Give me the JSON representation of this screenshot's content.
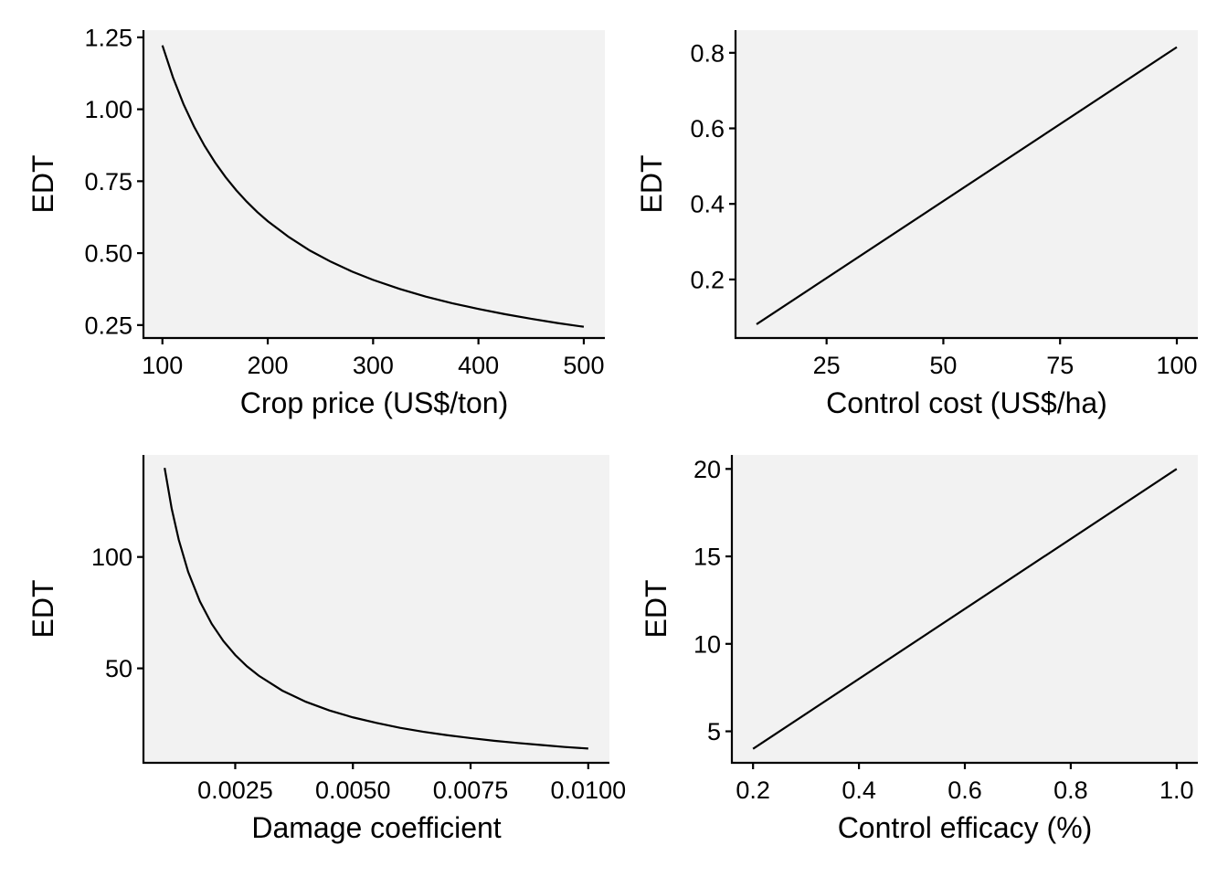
{
  "chart_data": [
    {
      "type": "line",
      "xlabel": "Crop price (US$/ton)",
      "ylabel": "EDT",
      "xlim": [
        82,
        520
      ],
      "ylim": [
        0.205,
        1.275
      ],
      "xticks": [
        100,
        200,
        300,
        400,
        500
      ],
      "xtick_labels": [
        "100",
        "200",
        "300",
        "400",
        "500"
      ],
      "yticks": [
        0.25,
        0.5,
        0.75,
        1.0,
        1.25
      ],
      "ytick_labels": [
        "0.25",
        "0.50",
        "0.75",
        "1.00",
        "1.25"
      ],
      "grid": false,
      "series": [
        {
          "x": [
            100,
            110,
            120,
            130,
            140,
            150,
            160,
            170,
            180,
            190,
            200,
            220,
            240,
            260,
            280,
            300,
            325,
            350,
            375,
            400,
            425,
            450,
            475,
            500
          ],
          "values": [
            1.222,
            1.111,
            1.018,
            0.94,
            0.873,
            0.815,
            0.764,
            0.719,
            0.679,
            0.643,
            0.611,
            0.556,
            0.509,
            0.47,
            0.436,
            0.407,
            0.376,
            0.349,
            0.326,
            0.306,
            0.288,
            0.272,
            0.257,
            0.244
          ]
        }
      ]
    },
    {
      "type": "line",
      "xlabel": "Control cost (US$/ha)",
      "ylabel": "EDT",
      "xlim": [
        5.5,
        104.5
      ],
      "ylim": [
        0.045,
        0.86
      ],
      "xticks": [
        25,
        50,
        75,
        100
      ],
      "xtick_labels": [
        "25",
        "50",
        "75",
        "100"
      ],
      "yticks": [
        0.2,
        0.4,
        0.6,
        0.8
      ],
      "ytick_labels": [
        "0.2",
        "0.4",
        "0.6",
        "0.8"
      ],
      "grid": false,
      "series": [
        {
          "x": [
            10,
            100
          ],
          "values": [
            0.0815,
            0.815
          ]
        }
      ]
    },
    {
      "type": "line",
      "xlabel": "Damage coefficient",
      "ylabel": "EDT",
      "xlim": [
        0.00055,
        0.01045
      ],
      "ylim": [
        7.6,
        145.8
      ],
      "xticks": [
        0.0025,
        0.005,
        0.0075,
        0.01
      ],
      "xtick_labels": [
        "0.0025",
        "0.0050",
        "0.0075",
        "0.0100"
      ],
      "yticks": [
        50,
        100
      ],
      "ytick_labels": [
        "50",
        "100"
      ],
      "grid": false,
      "series": [
        {
          "x": [
            0.001,
            0.00115,
            0.0013,
            0.0015,
            0.00175,
            0.002,
            0.00225,
            0.0025,
            0.00275,
            0.003,
            0.0035,
            0.004,
            0.0045,
            0.005,
            0.0055,
            0.006,
            0.0065,
            0.007,
            0.0075,
            0.008,
            0.0085,
            0.009,
            0.0095,
            0.01
          ],
          "values": [
            140,
            121.7,
            107.7,
            93.3,
            80.0,
            70.0,
            62.2,
            56.0,
            50.9,
            46.7,
            40.0,
            35.0,
            31.1,
            28.0,
            25.5,
            23.3,
            21.5,
            20.0,
            18.7,
            17.5,
            16.5,
            15.6,
            14.7,
            14.0
          ]
        }
      ]
    },
    {
      "type": "line",
      "xlabel": "Control efficacy (%)",
      "ylabel": "EDT",
      "xlim": [
        0.16,
        1.04
      ],
      "ylim": [
        3.2,
        20.8
      ],
      "xticks": [
        0.2,
        0.4,
        0.6,
        0.8,
        1.0
      ],
      "xtick_labels": [
        "0.2",
        "0.4",
        "0.6",
        "0.8",
        "1.0"
      ],
      "yticks": [
        5,
        10,
        15,
        20
      ],
      "ytick_labels": [
        "5",
        "10",
        "15",
        "20"
      ],
      "grid": false,
      "series": [
        {
          "x": [
            0.2,
            1.0
          ],
          "values": [
            4,
            20
          ]
        }
      ]
    }
  ]
}
